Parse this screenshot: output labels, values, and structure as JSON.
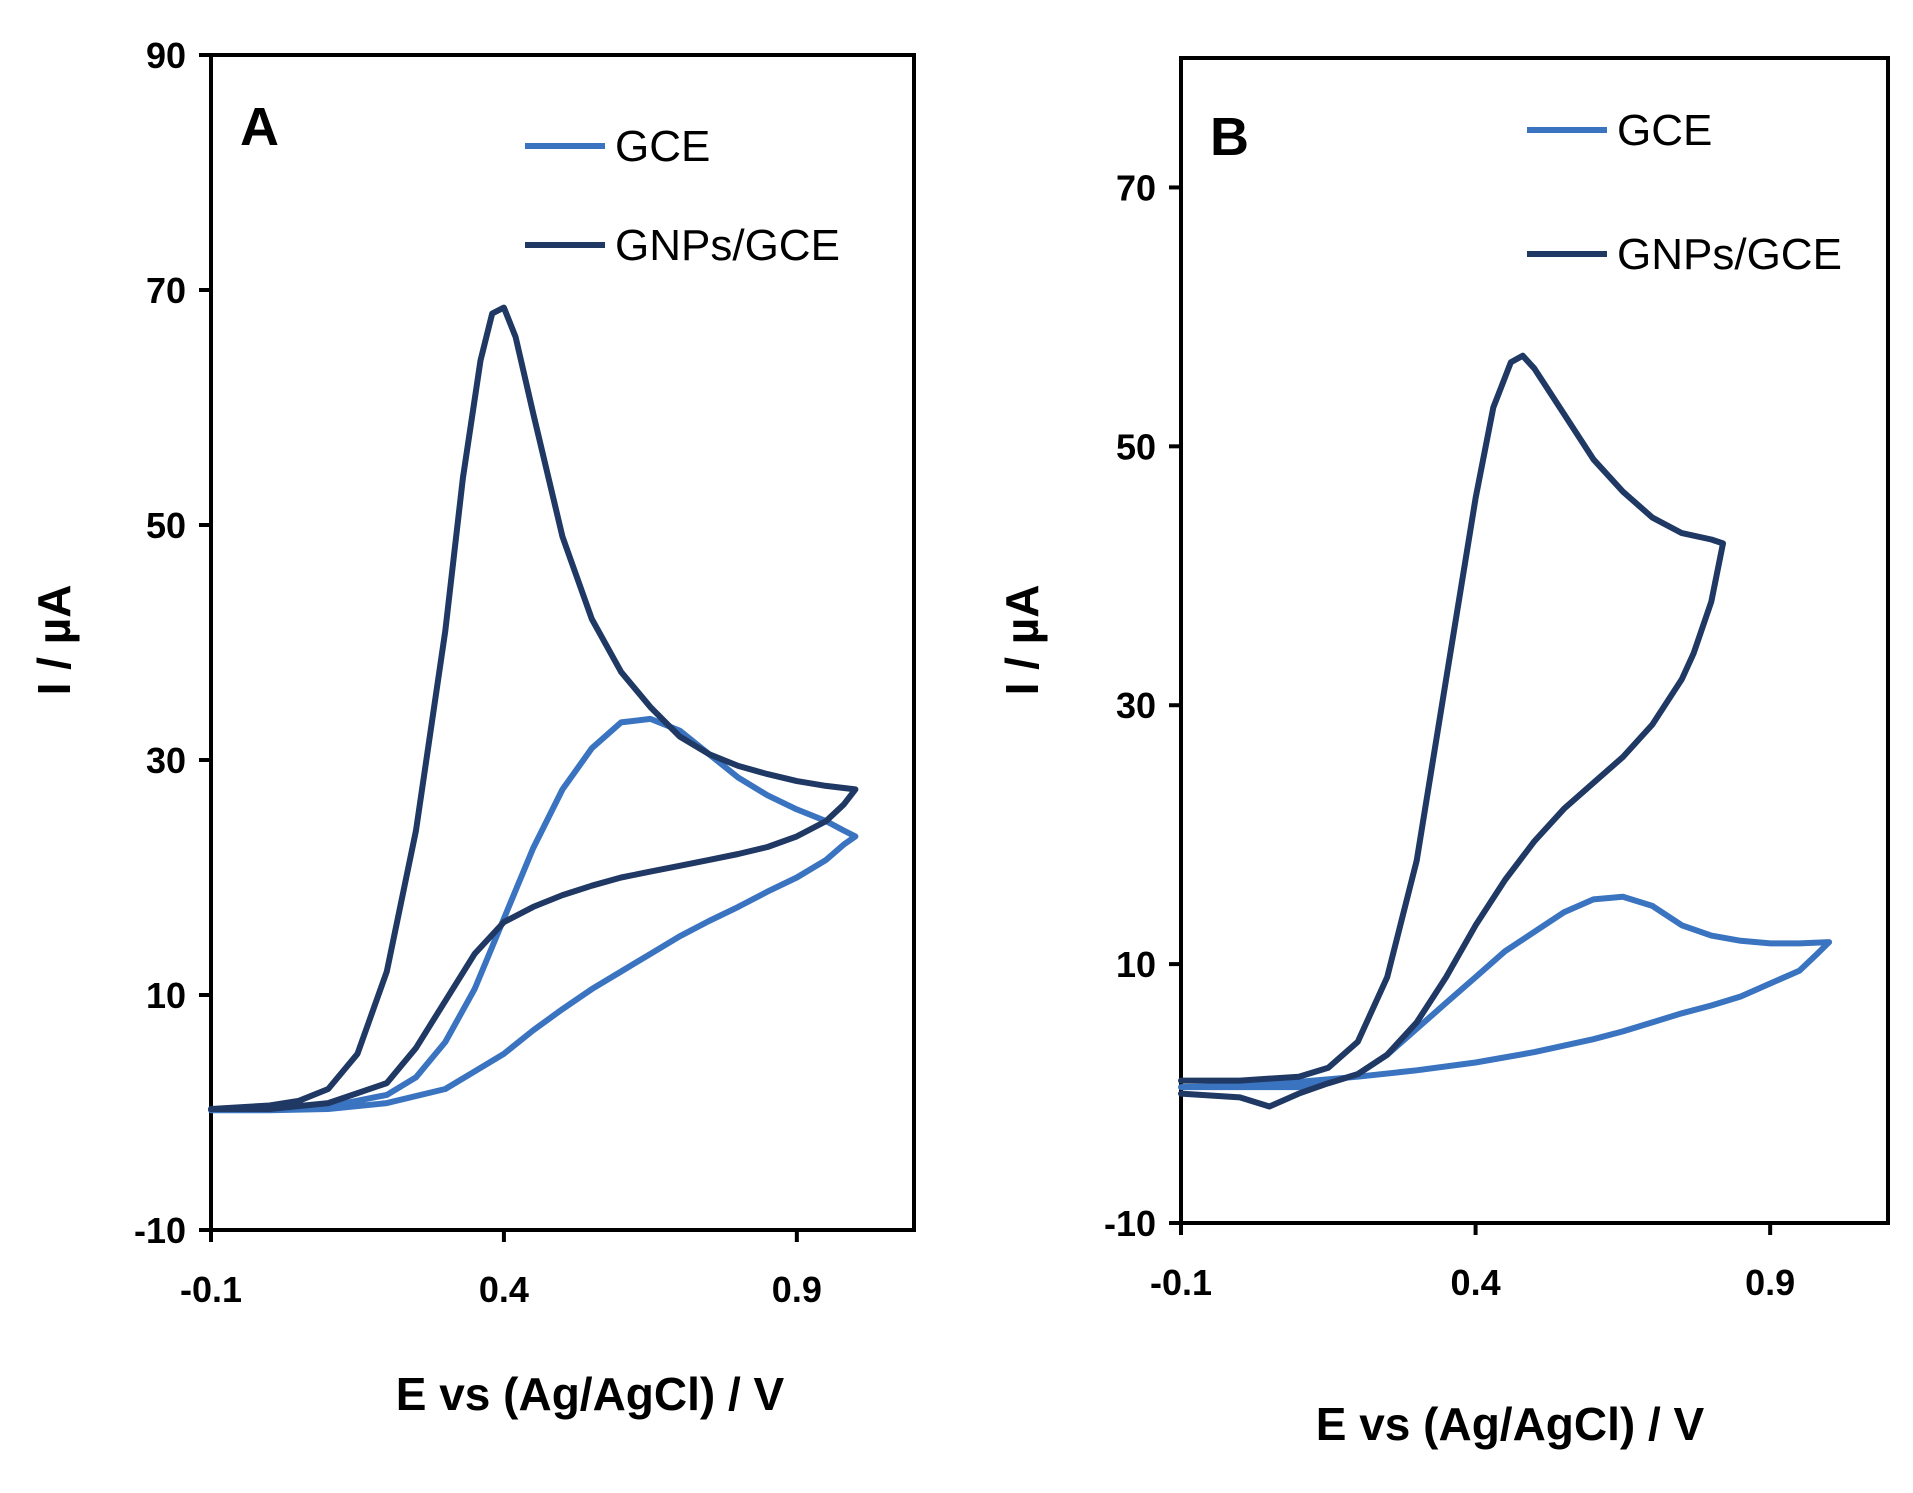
{
  "colors": {
    "GCE": "#3a74c0",
    "GNPs/GCE": "#1f3864"
  },
  "chart_data": [
    {
      "type": "line",
      "panel": "A",
      "xlabel": "E  vs (Ag/AgCl)  / V",
      "ylabel": "I / µA",
      "xlim": [
        -0.1,
        1.1
      ],
      "ylim": [
        -10,
        90
      ],
      "xticks": [
        -0.1,
        0.4,
        0.9
      ],
      "yticks": [
        -10,
        10,
        30,
        50,
        70,
        90
      ],
      "legend": [
        "GCE",
        "GNPs/GCE"
      ],
      "legend_position": "top-right",
      "series": [
        {
          "name": "GCE",
          "x": [
            -0.1,
            0.0,
            0.1,
            0.2,
            0.25,
            0.3,
            0.35,
            0.4,
            0.45,
            0.5,
            0.55,
            0.6,
            0.65,
            0.7,
            0.75,
            0.8,
            0.85,
            0.9,
            0.95,
            0.98,
            1.0,
            0.98,
            0.95,
            0.9,
            0.85,
            0.8,
            0.75,
            0.7,
            0.65,
            0.6,
            0.55,
            0.5,
            0.45,
            0.4,
            0.35,
            0.3,
            0.2,
            0.1,
            0.0,
            -0.1
          ],
          "y": [
            0.2,
            0.3,
            0.5,
            1.5,
            3.0,
            6.0,
            10.5,
            16.5,
            22.5,
            27.5,
            31.0,
            33.2,
            33.5,
            32.5,
            30.5,
            28.5,
            27.0,
            25.8,
            24.8,
            24.0,
            23.5,
            22.8,
            21.5,
            20.0,
            18.8,
            17.5,
            16.3,
            15.0,
            13.5,
            12.0,
            10.5,
            8.8,
            7.0,
            5.0,
            3.5,
            2.0,
            0.8,
            0.3,
            0.2,
            0.2
          ]
        },
        {
          "name": "GNPs/GCE",
          "x": [
            -0.1,
            0.0,
            0.05,
            0.1,
            0.15,
            0.2,
            0.25,
            0.3,
            0.33,
            0.36,
            0.38,
            0.4,
            0.42,
            0.45,
            0.5,
            0.55,
            0.6,
            0.65,
            0.7,
            0.75,
            0.8,
            0.85,
            0.9,
            0.95,
            1.0,
            0.98,
            0.95,
            0.9,
            0.85,
            0.8,
            0.75,
            0.7,
            0.65,
            0.6,
            0.55,
            0.5,
            0.45,
            0.4,
            0.35,
            0.3,
            0.25,
            0.2,
            0.1,
            0.0,
            -0.1
          ],
          "y": [
            0.3,
            0.6,
            1.0,
            2.0,
            5.0,
            12.0,
            24.0,
            41.0,
            54.0,
            64.0,
            68.0,
            68.5,
            66.0,
            59.5,
            49.0,
            42.0,
            37.5,
            34.5,
            32.0,
            30.5,
            29.5,
            28.8,
            28.2,
            27.8,
            27.5,
            26.2,
            24.8,
            23.5,
            22.6,
            22.0,
            21.5,
            21.0,
            20.5,
            20.0,
            19.3,
            18.5,
            17.5,
            16.2,
            13.5,
            9.5,
            5.5,
            2.5,
            0.8,
            0.3,
            0.3
          ]
        }
      ]
    },
    {
      "type": "line",
      "panel": "B",
      "xlabel": "E  vs (Ag/AgCl)  / V",
      "ylabel": "I / µA",
      "xlim": [
        -0.1,
        1.1
      ],
      "ylim": [
        -10,
        80
      ],
      "xticks": [
        -0.1,
        0.4,
        0.9
      ],
      "yticks": [
        -10,
        10,
        30,
        50,
        70
      ],
      "legend": [
        "GCE",
        "GNPs/GCE"
      ],
      "legend_position": "top-right",
      "series": [
        {
          "name": "GCE",
          "x": [
            -0.1,
            0.0,
            0.1,
            0.15,
            0.2,
            0.25,
            0.3,
            0.35,
            0.4,
            0.45,
            0.5,
            0.55,
            0.6,
            0.65,
            0.7,
            0.75,
            0.8,
            0.85,
            0.9,
            0.95,
            1.0,
            0.98,
            0.95,
            0.9,
            0.85,
            0.8,
            0.75,
            0.7,
            0.65,
            0.6,
            0.5,
            0.4,
            0.3,
            0.2,
            0.1,
            0.0,
            -0.1
          ],
          "y": [
            0.5,
            0.5,
            0.5,
            0.8,
            1.5,
            3.0,
            5.0,
            7.0,
            9.0,
            11.0,
            12.5,
            14.0,
            15.0,
            15.2,
            14.5,
            13.0,
            12.2,
            11.8,
            11.6,
            11.6,
            11.7,
            10.8,
            9.5,
            8.5,
            7.5,
            6.8,
            6.2,
            5.5,
            4.8,
            4.2,
            3.2,
            2.4,
            1.8,
            1.3,
            0.9,
            0.6,
            0.5
          ]
        },
        {
          "name": "GNPs/GCE",
          "x": [
            -0.1,
            0.0,
            0.1,
            0.15,
            0.2,
            0.25,
            0.3,
            0.35,
            0.4,
            0.43,
            0.46,
            0.48,
            0.5,
            0.55,
            0.6,
            0.65,
            0.7,
            0.75,
            0.8,
            0.82,
            0.8,
            0.77,
            0.75,
            0.7,
            0.65,
            0.6,
            0.55,
            0.5,
            0.45,
            0.4,
            0.35,
            0.3,
            0.25,
            0.2,
            0.15,
            0.1,
            0.05,
            0.0,
            -0.1
          ],
          "y": [
            1.0,
            1.0,
            1.3,
            2.0,
            4.0,
            9.0,
            18.0,
            32.0,
            46.0,
            53.0,
            56.5,
            57.0,
            56.0,
            52.5,
            49.0,
            46.5,
            44.5,
            43.3,
            42.8,
            42.5,
            38.0,
            34.0,
            32.0,
            28.5,
            26.0,
            24.0,
            22.0,
            19.5,
            16.5,
            13.0,
            9.0,
            5.5,
            3.0,
            1.5,
            0.8,
            0.0,
            -1.0,
            -0.3,
            0.0
          ]
        }
      ]
    }
  ]
}
